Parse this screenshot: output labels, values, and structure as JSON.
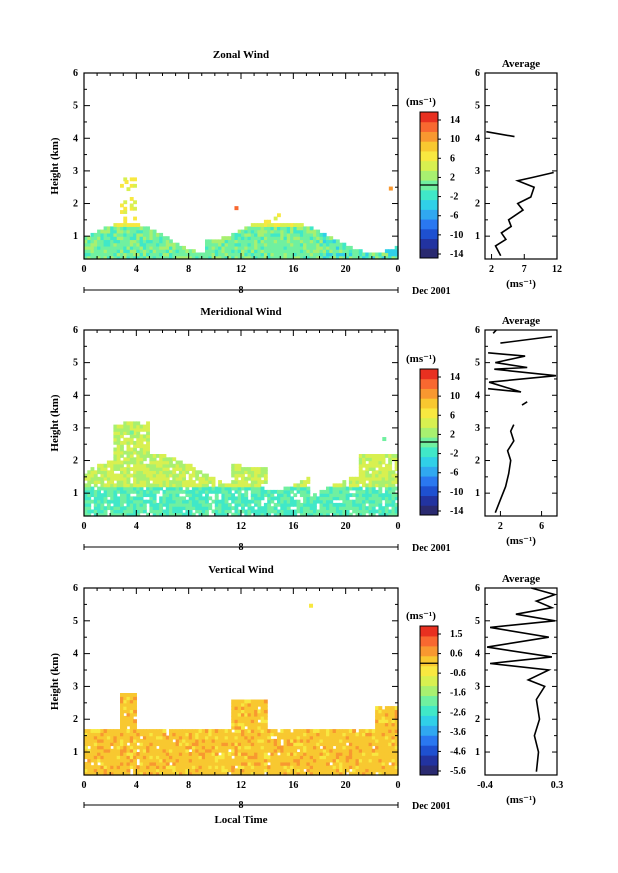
{
  "chart_data": [
    {
      "type": "heatmap",
      "title": "Zonal Wind",
      "ylabel": "Height (km)",
      "xlabel": "",
      "xlim": [
        0,
        24
      ],
      "ylim": [
        0.3,
        6
      ],
      "x_ticks": [
        "0",
        "4",
        "8",
        "12",
        "16",
        "20",
        "0"
      ],
      "y_ticks": [
        "1",
        "2",
        "3",
        "4",
        "5",
        "6"
      ],
      "date_marker": "8",
      "date_label": "Dec 2001",
      "colorbar": {
        "unit": "(ms⁻¹)",
        "ticks": [
          "14",
          "10",
          "6",
          "2",
          "-2",
          "-6",
          "-10",
          "-14"
        ],
        "range": [
          -16,
          16
        ]
      },
      "average": {
        "title": "Average",
        "xlabel": "(ms⁻¹)",
        "x_ticks": [
          "2",
          "7",
          "12"
        ],
        "xlim": [
          1,
          12
        ],
        "y_ticks": [
          "1",
          "2",
          "3",
          "4",
          "5",
          "6"
        ],
        "profile_segments": [
          [
            [
              3.4,
              0.4
            ],
            [
              2.6,
              0.7
            ],
            [
              4.2,
              0.9
            ],
            [
              3.5,
              1.1
            ],
            [
              5.0,
              1.3
            ],
            [
              4.6,
              1.5
            ],
            [
              6.8,
              1.8
            ],
            [
              6.0,
              2.0
            ],
            [
              8.0,
              2.2
            ],
            [
              8.5,
              2.5
            ],
            [
              6.0,
              2.7
            ],
            [
              8.3,
              2.8
            ],
            [
              11.5,
              2.95
            ]
          ],
          [
            [
              1.2,
              4.2
            ],
            [
              5.5,
              4.05
            ]
          ]
        ]
      },
      "note": "Colour cells: westerly (yellow/green) winds near 0-6 ms-1 below ~1.5 km with scattered cells up to ~2.8 km."
    },
    {
      "type": "heatmap",
      "title": "Meridional Wind",
      "ylabel": "Height (km)",
      "xlabel": "",
      "xlim": [
        0,
        24
      ],
      "ylim": [
        0.3,
        6
      ],
      "x_ticks": [
        "0",
        "4",
        "8",
        "12",
        "16",
        "20",
        "0"
      ],
      "y_ticks": [
        "1",
        "2",
        "3",
        "4",
        "5",
        "6"
      ],
      "date_marker": "8",
      "date_label": "Dec 2001",
      "colorbar": {
        "unit": "(ms⁻¹)",
        "ticks": [
          "14",
          "10",
          "6",
          "2",
          "-2",
          "-6",
          "-10",
          "-14"
        ],
        "range": [
          -16,
          16
        ]
      },
      "average": {
        "title": "Average",
        "xlabel": "(ms⁻¹)",
        "x_ticks": [
          "2",
          "6"
        ],
        "xlim": [
          0.5,
          7.5
        ],
        "y_ticks": [
          "1",
          "2",
          "3",
          "4",
          "5",
          "6"
        ],
        "profile_segments": [
          [
            [
              1.5,
              0.4
            ],
            [
              2.0,
              0.8
            ],
            [
              2.5,
              1.2
            ],
            [
              2.8,
              1.6
            ],
            [
              3.0,
              2.0
            ],
            [
              2.7,
              2.3
            ],
            [
              3.3,
              2.6
            ],
            [
              3.0,
              2.9
            ],
            [
              3.3,
              3.1
            ]
          ],
          [
            [
              0.8,
              4.2
            ],
            [
              4.0,
              4.1
            ],
            [
              0.9,
              4.4
            ],
            [
              7.4,
              4.6
            ],
            [
              1.4,
              4.8
            ],
            [
              4.6,
              4.85
            ],
            [
              1.5,
              5.0
            ],
            [
              4.4,
              5.2
            ],
            [
              0.8,
              5.3
            ]
          ],
          [
            [
              2.0,
              5.6
            ],
            [
              7.0,
              5.8
            ]
          ],
          [
            [
              1.3,
              5.9
            ],
            [
              1.6,
              6.0
            ]
          ],
          [
            [
              4.1,
              3.7
            ],
            [
              4.6,
              3.8
            ]
          ]
        ]
      }
    },
    {
      "type": "heatmap",
      "title": "Vertical Wind",
      "ylabel": "Height (km)",
      "xlabel": "Local Time",
      "xlim": [
        0,
        24
      ],
      "ylim": [
        0.3,
        6
      ],
      "x_ticks": [
        "0",
        "4",
        "8",
        "12",
        "16",
        "20",
        "0"
      ],
      "y_ticks": [
        "1",
        "2",
        "3",
        "4",
        "5",
        "6"
      ],
      "date_marker": "8",
      "date_label": "Dec 2001",
      "colorbar": {
        "unit": "(ms⁻¹)",
        "ticks": [
          "1.5",
          "0.6",
          "-0.6",
          "-1.6",
          "-2.6",
          "-3.6",
          "-4.6",
          "-5.6"
        ],
        "range": [
          -6.0,
          2.0
        ]
      },
      "average": {
        "title": "Average",
        "xlabel": "(ms⁻¹)",
        "x_ticks": [
          "-0.4",
          "0.3"
        ],
        "xlim": [
          -0.4,
          0.3
        ],
        "y_ticks": [
          "1",
          "2",
          "3",
          "4",
          "5",
          "6"
        ],
        "profile_segments": [
          [
            [
              0.1,
              0.4
            ],
            [
              0.12,
              1.0
            ],
            [
              0.08,
              1.5
            ],
            [
              0.13,
              2.0
            ],
            [
              0.1,
              2.6
            ],
            [
              0.18,
              3.0
            ],
            [
              0.02,
              3.2
            ],
            [
              0.22,
              3.5
            ],
            [
              -0.35,
              3.7
            ],
            [
              0.25,
              3.9
            ],
            [
              -0.38,
              4.2
            ],
            [
              0.22,
              4.5
            ],
            [
              -0.35,
              4.8
            ],
            [
              0.28,
              5.0
            ],
            [
              -0.1,
              5.2
            ],
            [
              0.25,
              5.4
            ],
            [
              0.1,
              5.6
            ],
            [
              0.28,
              5.8
            ],
            [
              0.05,
              6.0
            ]
          ]
        ]
      }
    }
  ]
}
